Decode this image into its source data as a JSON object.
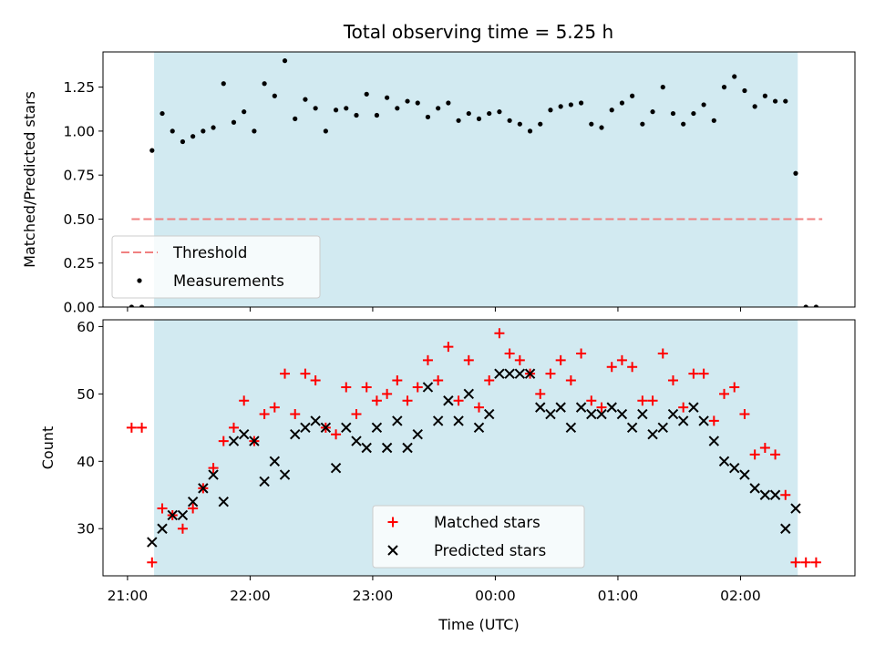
{
  "chart_data": [
    {
      "type": "scatter",
      "title": "Total observing time = 5.25 h",
      "xlabel": "",
      "ylabel": "Matched/Predicted stars",
      "ylim": [
        0,
        1.45
      ],
      "yticks": [
        0.0,
        0.25,
        0.5,
        0.75,
        1.0,
        1.25
      ],
      "ytick_labels": [
        "0.00",
        "0.25",
        "0.50",
        "0.75",
        "1.00",
        "1.25"
      ],
      "grid": false,
      "legend_position": "lower-left",
      "series": [
        {
          "name": "Threshold",
          "kind": "dashed-line",
          "color": "#f08080",
          "x": [
            "21:02",
            "23:55",
            "02:40"
          ],
          "y": [
            0.5,
            0.5,
            0.5
          ]
        },
        {
          "name": "Measurements",
          "kind": "dots",
          "color": "#000000",
          "x": [
            "21:02",
            "21:07",
            "21:12",
            "21:17",
            "21:22",
            "21:27",
            "21:32",
            "21:37",
            "21:42",
            "21:47",
            "21:52",
            "21:57",
            "22:02",
            "22:07",
            "22:12",
            "22:17",
            "22:22",
            "22:27",
            "22:32",
            "22:37",
            "22:42",
            "22:47",
            "22:52",
            "22:57",
            "23:02",
            "23:07",
            "23:12",
            "23:17",
            "23:22",
            "23:27",
            "23:32",
            "23:37",
            "23:42",
            "23:47",
            "23:52",
            "23:57",
            "00:02",
            "00:07",
            "00:12",
            "00:17",
            "00:22",
            "00:27",
            "00:32",
            "00:37",
            "00:42",
            "00:47",
            "00:52",
            "00:57",
            "01:02",
            "01:07",
            "01:12",
            "01:17",
            "01:22",
            "01:27",
            "01:32",
            "01:37",
            "01:42",
            "01:47",
            "01:52",
            "01:57",
            "02:02",
            "02:07",
            "02:12",
            "02:17",
            "02:22",
            "02:27",
            "02:32",
            "02:37"
          ],
          "y": [
            0.0,
            0.0,
            0.89,
            1.1,
            1.0,
            0.94,
            0.97,
            1.0,
            1.02,
            1.27,
            1.05,
            1.11,
            1.0,
            1.27,
            1.2,
            1.4,
            1.07,
            1.18,
            1.13,
            1.0,
            1.12,
            1.13,
            1.09,
            1.21,
            1.09,
            1.19,
            1.13,
            1.17,
            1.16,
            1.08,
            1.13,
            1.16,
            1.06,
            1.1,
            1.07,
            1.1,
            1.11,
            1.06,
            1.04,
            1.0,
            1.04,
            1.12,
            1.14,
            1.15,
            1.16,
            1.04,
            1.02,
            1.12,
            1.16,
            1.2,
            1.04,
            1.11,
            1.25,
            1.1,
            1.04,
            1.1,
            1.15,
            1.06,
            1.25,
            1.31,
            1.23,
            1.14,
            1.2,
            1.17,
            1.17,
            0.76,
            0.0,
            0.0
          ]
        }
      ],
      "shaded_region": {
        "x_start": "21:13",
        "x_end": "02:28",
        "color": "#add8e6"
      }
    },
    {
      "type": "scatter",
      "title": "",
      "xlabel": "Time (UTC)",
      "ylabel": "Count",
      "ylim": [
        23,
        61
      ],
      "yticks": [
        30,
        40,
        50,
        60
      ],
      "ytick_labels": [
        "30",
        "40",
        "50",
        "60"
      ],
      "xticks": [
        "21:00",
        "22:00",
        "23:00",
        "00:00",
        "01:00",
        "02:00"
      ],
      "grid": false,
      "legend_position": "lower-center",
      "series": [
        {
          "name": "Matched stars",
          "marker": "+",
          "color": "#ff0000",
          "x": [
            "21:02",
            "21:07",
            "21:12",
            "21:17",
            "21:22",
            "21:27",
            "21:32",
            "21:37",
            "21:42",
            "21:47",
            "21:52",
            "21:57",
            "22:02",
            "22:07",
            "22:12",
            "22:17",
            "22:22",
            "22:27",
            "22:32",
            "22:37",
            "22:42",
            "22:47",
            "22:52",
            "22:57",
            "23:02",
            "23:07",
            "23:12",
            "23:17",
            "23:22",
            "23:27",
            "23:32",
            "23:37",
            "23:42",
            "23:47",
            "23:52",
            "23:57",
            "00:02",
            "00:07",
            "00:12",
            "00:17",
            "00:22",
            "00:27",
            "00:32",
            "00:37",
            "00:42",
            "00:47",
            "00:52",
            "00:57",
            "01:02",
            "01:07",
            "01:12",
            "01:17",
            "01:22",
            "01:27",
            "01:32",
            "01:37",
            "01:42",
            "01:47",
            "01:52",
            "01:57",
            "02:02",
            "02:07",
            "02:12",
            "02:17",
            "02:22",
            "02:27",
            "02:32",
            "02:37"
          ],
          "y": [
            45,
            45,
            25,
            33,
            32,
            30,
            33,
            36,
            39,
            43,
            45,
            49,
            43,
            47,
            48,
            53,
            47,
            53,
            52,
            45,
            44,
            51,
            47,
            51,
            49,
            50,
            52,
            49,
            51,
            55,
            52,
            57,
            49,
            55,
            48,
            52,
            59,
            56,
            55,
            53,
            50,
            53,
            55,
            52,
            56,
            49,
            48,
            54,
            55,
            54,
            49,
            49,
            56,
            52,
            48,
            53,
            53,
            46,
            50,
            51,
            47,
            41,
            42,
            41,
            35,
            25,
            25,
            25
          ]
        },
        {
          "name": "Predicted stars",
          "marker": "x",
          "color": "#000000",
          "x": [
            "21:12",
            "21:17",
            "21:22",
            "21:27",
            "21:32",
            "21:37",
            "21:42",
            "21:47",
            "21:52",
            "21:57",
            "22:02",
            "22:07",
            "22:12",
            "22:17",
            "22:22",
            "22:27",
            "22:32",
            "22:37",
            "22:42",
            "22:47",
            "22:52",
            "22:57",
            "23:02",
            "23:07",
            "23:12",
            "23:17",
            "23:22",
            "23:27",
            "23:32",
            "23:37",
            "23:42",
            "23:47",
            "23:52",
            "23:57",
            "00:02",
            "00:07",
            "00:12",
            "00:17",
            "00:22",
            "00:27",
            "00:32",
            "00:37",
            "00:42",
            "00:47",
            "00:52",
            "00:57",
            "01:02",
            "01:07",
            "01:12",
            "01:17",
            "01:22",
            "01:27",
            "01:32",
            "01:37",
            "01:42",
            "01:47",
            "01:52",
            "01:57",
            "02:02",
            "02:07",
            "02:12",
            "02:17",
            "02:22",
            "02:27"
          ],
          "y": [
            28,
            30,
            32,
            32,
            34,
            36,
            38,
            34,
            43,
            44,
            43,
            37,
            40,
            38,
            44,
            45,
            46,
            45,
            39,
            45,
            43,
            42,
            45,
            42,
            46,
            42,
            44,
            51,
            46,
            49,
            46,
            50,
            45,
            47,
            53,
            53,
            53,
            53,
            48,
            47,
            48,
            45,
            48,
            47,
            47,
            48,
            47,
            45,
            47,
            44,
            45,
            47,
            46,
            48,
            46,
            43,
            40,
            39,
            38,
            36,
            35,
            35,
            30,
            33
          ]
        }
      ],
      "shaded_region": {
        "x_start": "21:13",
        "x_end": "02:28",
        "color": "#add8e6"
      }
    }
  ]
}
